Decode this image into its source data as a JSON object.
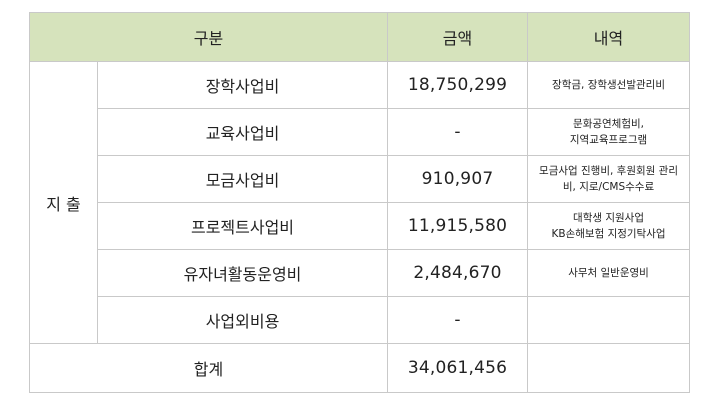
{
  "header": {
    "category": "구분",
    "amount": "금액",
    "details": "내역"
  },
  "group_label": "지 출",
  "rows": [
    {
      "category": "장학사업비",
      "amount": "18,750,299",
      "details": [
        "장학금, 장학생선발관리비"
      ]
    },
    {
      "category": "교육사업비",
      "amount": "-",
      "details": [
        "문화공연체험비,",
        "지역교육프로그램"
      ]
    },
    {
      "category": "모금사업비",
      "amount": "910,907",
      "details": [
        "모금사업 진행비, 후원회원 관리",
        "비, 지로/CMS수수료"
      ]
    },
    {
      "category": "프로젝트사업비",
      "amount": "11,915,580",
      "details": [
        "대학생 지원사업",
        "KB손해보험 지정기탁사업"
      ]
    },
    {
      "category": "유자녀활동운영비",
      "amount": "2,484,670",
      "details": [
        "사무처 일반운영비"
      ]
    },
    {
      "category": "사업외비용",
      "amount": "-",
      "details": []
    }
  ],
  "total": {
    "label": "합계",
    "amount": "34,061,456",
    "details": ""
  },
  "colors": {
    "header_bg": "#d6e3bc",
    "border": "#c9c9c9"
  }
}
